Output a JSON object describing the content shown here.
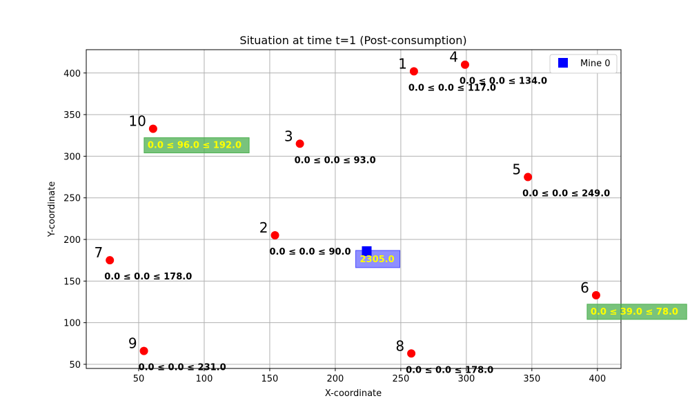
{
  "chart_data": {
    "type": "scatter",
    "title": "Situation at time t=1 (Post-consumption)",
    "xlabel": "X-coordinate",
    "ylabel": "Y-coordinate",
    "xlim": [
      10,
      418
    ],
    "ylim": [
      45,
      428
    ],
    "xticks": [
      50,
      100,
      150,
      200,
      250,
      300,
      350,
      400
    ],
    "yticks": [
      50,
      100,
      150,
      200,
      250,
      300,
      350,
      400
    ],
    "grid": true,
    "legend": {
      "placement": "top-right",
      "entries": [
        {
          "label": "Mine 0",
          "marker": "square",
          "color": "#0000ff"
        }
      ]
    },
    "points": [
      {
        "id": "1",
        "x": 260,
        "y": 402,
        "range_text": "0.0 ≤ 0.0 ≤ 117.0",
        "highlighted": false
      },
      {
        "id": "2",
        "x": 154,
        "y": 205,
        "range_text": "0.0 ≤ 0.0 ≤ 90.0",
        "highlighted": false
      },
      {
        "id": "3",
        "x": 173,
        "y": 315,
        "range_text": "0.0 ≤ 0.0 ≤ 93.0",
        "highlighted": false
      },
      {
        "id": "4",
        "x": 299,
        "y": 410,
        "range_text": "0.0 ≤ 0.0 ≤ 134.0",
        "highlighted": false
      },
      {
        "id": "5",
        "x": 347,
        "y": 275,
        "range_text": "0.0 ≤ 0.0 ≤ 249.0",
        "highlighted": false
      },
      {
        "id": "6",
        "x": 399,
        "y": 133,
        "range_text": "0.0 ≤ 39.0 ≤ 78.0",
        "highlighted": true
      },
      {
        "id": "7",
        "x": 28,
        "y": 175,
        "range_text": "0.0 ≤ 0.0 ≤ 178.0",
        "highlighted": false
      },
      {
        "id": "8",
        "x": 258,
        "y": 63,
        "range_text": "0.0 ≤ 0.0 ≤ 178.0",
        "highlighted": false
      },
      {
        "id": "9",
        "x": 54,
        "y": 66,
        "range_text": "0.0 ≤ 0.0 ≤ 231.0",
        "highlighted": false
      },
      {
        "id": "10",
        "x": 61,
        "y": 333,
        "range_text": "0.0 ≤ 96.0 ≤ 192.0",
        "highlighted": true
      }
    ],
    "mine": {
      "name": "Mine 0",
      "x": 224,
      "y": 186,
      "value_text": "2305.0"
    },
    "colors": {
      "point": "#ff0000",
      "mine": "#0000ff",
      "highlight_box": "#4caf50",
      "highlight_text": "#ffff00",
      "mine_box": "#6a6aff",
      "grid": "#b0b0b0"
    }
  }
}
